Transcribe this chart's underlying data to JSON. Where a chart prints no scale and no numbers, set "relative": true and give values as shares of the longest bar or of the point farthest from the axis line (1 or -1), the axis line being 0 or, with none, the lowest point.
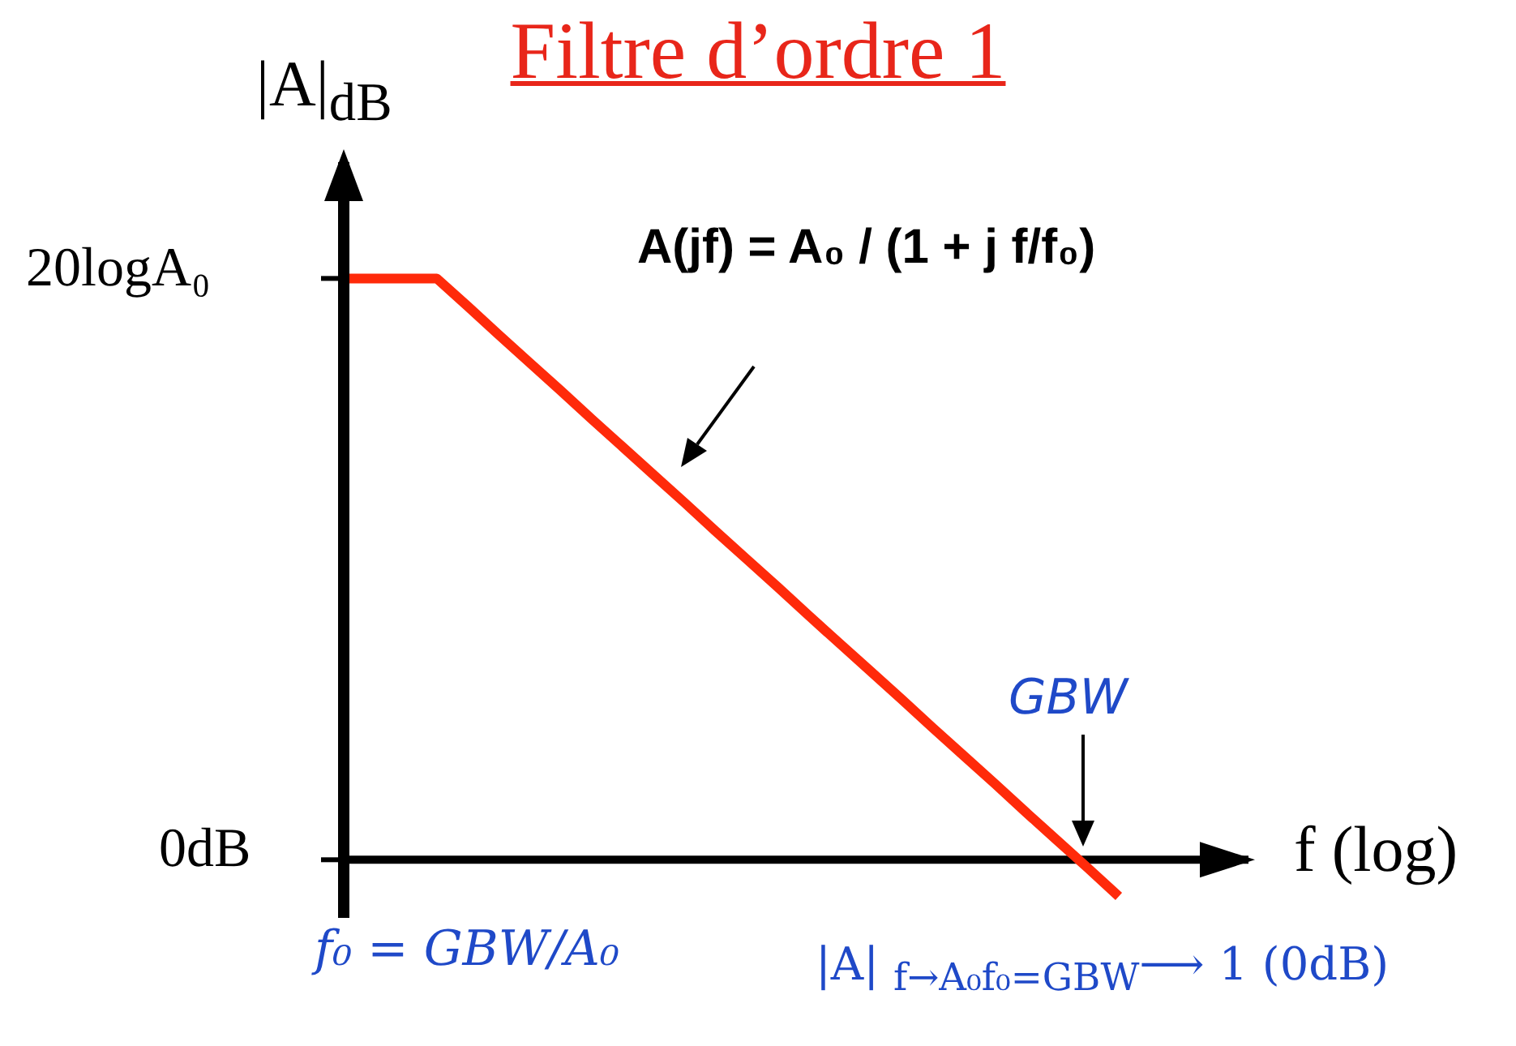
{
  "chart_data": {
    "type": "line",
    "title": "Filtre d’ordre 1",
    "xlabel": "f (log)",
    "ylabel": "|A|$_{dB}$",
    "relative": true,
    "categories": [
      null,
      null,
      null,
      null,
      null,
      null,
      null,
      null,
      null,
      null,
      null,
      null,
      null,
      null,
      null,
      null,
      null,
      null,
      null,
      null,
      null,
      null,
      null,
      null,
      null,
      null
    ],
    "values": [
      1,
      1,
      1,
      1,
      0.952,
      0.903,
      0.855,
      0.807,
      0.758,
      0.71,
      0.662,
      0.614,
      0.565,
      0.517,
      0.469,
      0.42,
      0.372,
      0.324,
      0.276,
      0.227,
      0.179,
      0.131,
      0.082,
      0.034,
      -0.014,
      -0.063
    ],
    "color": "#ff2a0a",
    "annotations": [
      "A(jf) = A₀ / (1 + j f/f₀)",
      "GBW",
      "f₀ = GBW/A₀",
      "|A| $_{f→A₀f₀=GBW}$⟶ 1 (0dB)",
      "20logA₀",
      "0dB"
    ]
  }
}
